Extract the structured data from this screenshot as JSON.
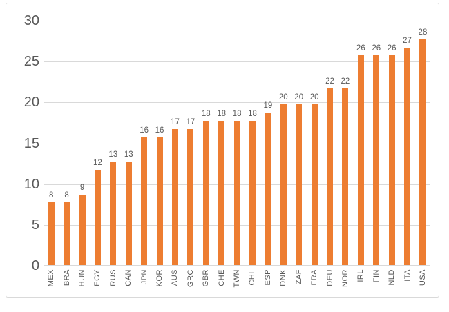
{
  "chart_data": {
    "type": "bar",
    "categories": [
      "MEX",
      "BRA",
      "HUN",
      "EGY",
      "RUS",
      "CAN",
      "JPN",
      "KOR",
      "AUS",
      "GRC",
      "GBR",
      "CHE",
      "TWN",
      "CHL",
      "ESP",
      "DNK",
      "ZAF",
      "FRA",
      "DEU",
      "NOR",
      "IRL",
      "FIN",
      "NLD",
      "ITA",
      "USA"
    ],
    "values": [
      8,
      8,
      9,
      12,
      13,
      13,
      16,
      16,
      17,
      17,
      18,
      18,
      18,
      18,
      19,
      20,
      20,
      20,
      22,
      22,
      26,
      26,
      26,
      27,
      28
    ],
    "title": "",
    "xlabel": "",
    "ylabel": "",
    "ylim": [
      0,
      30
    ],
    "yticks": [
      0,
      5,
      10,
      15,
      20,
      25,
      30
    ],
    "grid": true,
    "legend_position": "none",
    "data_labels": true,
    "colors": {
      "bar": "#ed7d31",
      "gridline": "#d9d9d9",
      "axis_text": "#595959",
      "frame_border": "#d9d9d9",
      "background": "#ffffff"
    }
  }
}
